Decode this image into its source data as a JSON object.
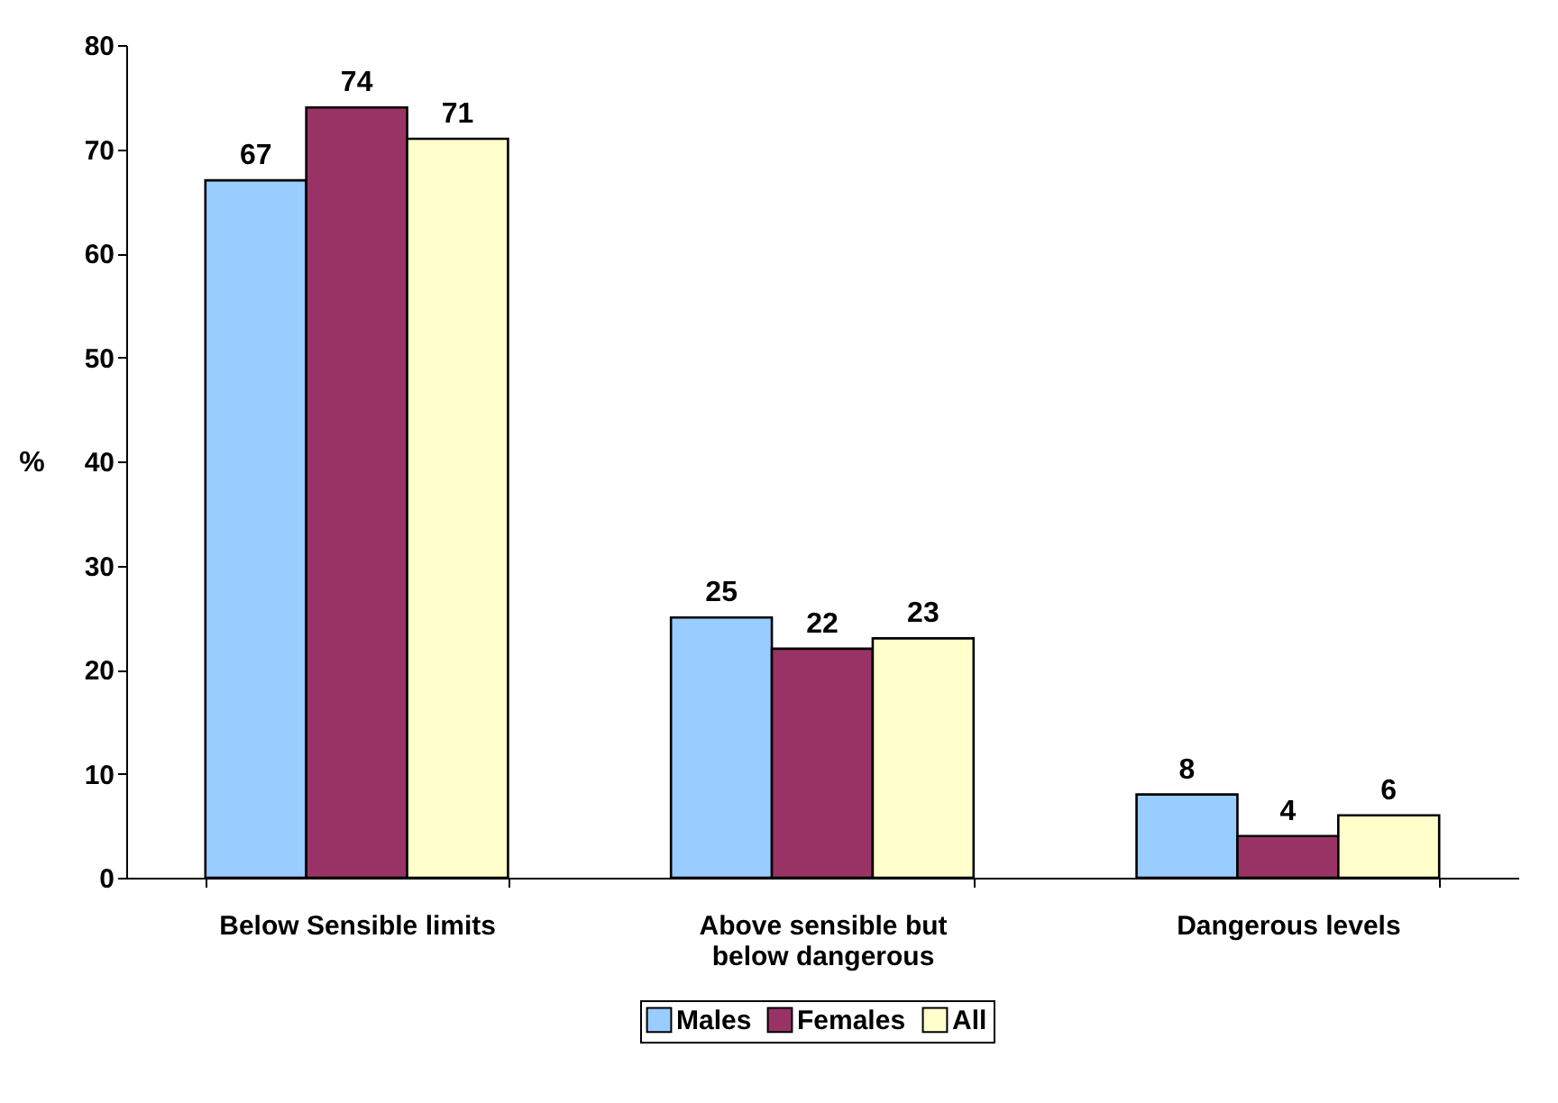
{
  "chart_data": {
    "type": "bar",
    "ylabel": "%",
    "categories": [
      "Below Sensible limits",
      "Above sensible but below dangerous",
      "Dangerous levels"
    ],
    "series": [
      {
        "name": "Males",
        "color": "#99ccff",
        "values": [
          67,
          25,
          8
        ]
      },
      {
        "name": "Females",
        "color": "#993366",
        "values": [
          74,
          22,
          4
        ]
      },
      {
        "name": "All",
        "color": "#ffffcc",
        "values": [
          71,
          23,
          6
        ]
      }
    ],
    "ylim": [
      0,
      80
    ],
    "yticks": [
      0,
      10,
      20,
      30,
      40,
      50,
      60,
      70,
      80
    ],
    "grid": false,
    "legend": "bottom",
    "data_labels": true
  }
}
